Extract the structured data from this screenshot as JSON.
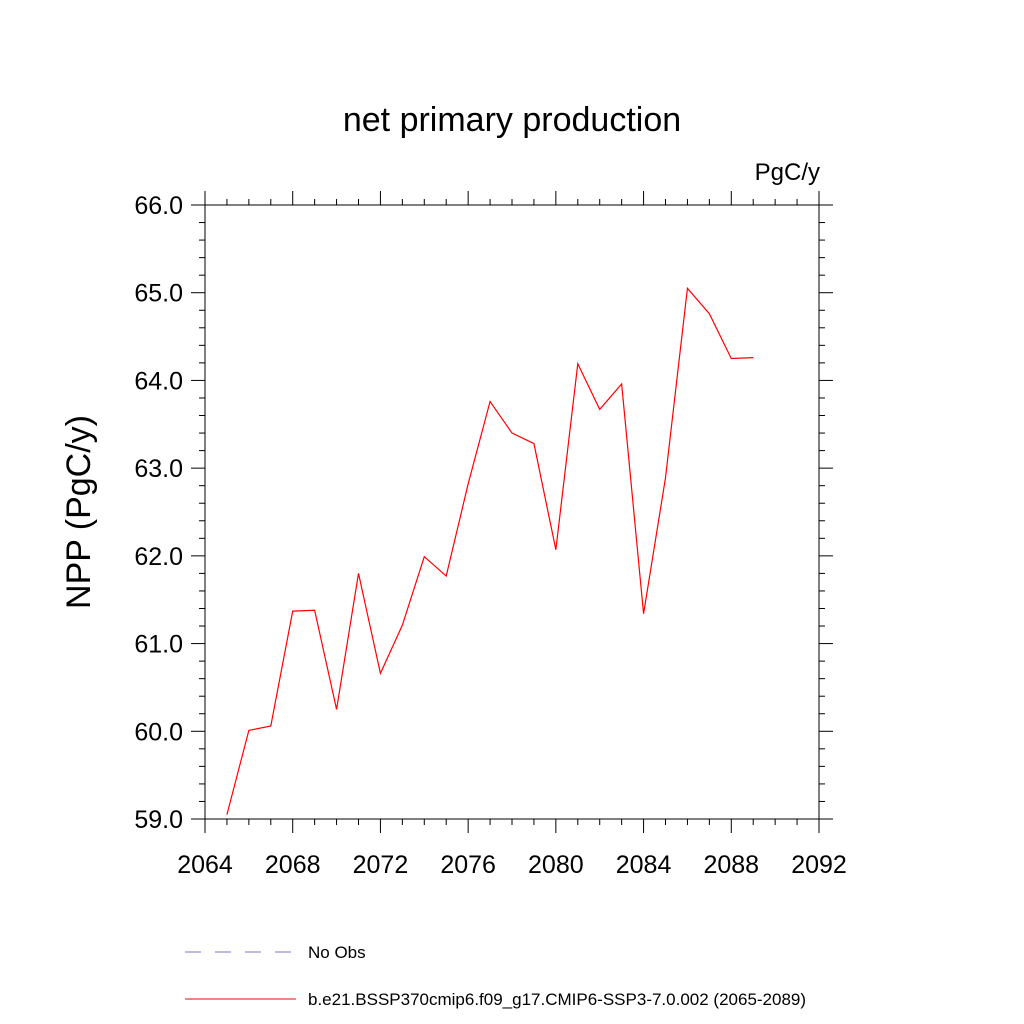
{
  "chart_data": {
    "type": "line",
    "title": "net primary production",
    "units": "PgC/y",
    "xlabel": "",
    "ylabel": "NPP  (PgC/y)",
    "xlim": [
      2064,
      2092
    ],
    "ylim": [
      59.0,
      66.0
    ],
    "x_ticks": [
      "2064",
      "2068",
      "2072",
      "2076",
      "2080",
      "2084",
      "2088",
      "2092"
    ],
    "y_ticks": [
      "59.0",
      "60.0",
      "61.0",
      "62.0",
      "63.0",
      "64.0",
      "65.0",
      "66.0"
    ],
    "grid": false,
    "legend_position": "bottom",
    "series": [
      {
        "name": "b.e21.BSSP370cmip6.f09_g17.CMIP6-SSP3-7.0.002 (2065-2089)",
        "color": "#ff0000",
        "style": "solid",
        "x": [
          2065,
          2066,
          2067,
          2068,
          2069,
          2070,
          2071,
          2072,
          2073,
          2074,
          2075,
          2076,
          2077,
          2078,
          2079,
          2080,
          2081,
          2082,
          2083,
          2084,
          2085,
          2086,
          2087,
          2088,
          2089
        ],
        "values": [
          59.05,
          60.01,
          60.06,
          61.37,
          61.38,
          60.25,
          61.8,
          60.66,
          61.21,
          61.99,
          61.77,
          62.82,
          63.76,
          63.4,
          63.28,
          62.07,
          64.19,
          63.67,
          63.96,
          61.34,
          62.89,
          65.05,
          64.76,
          64.25,
          64.26
        ]
      }
    ],
    "legend": [
      {
        "label": "No Obs",
        "color": "#7777cc",
        "style": "dashed"
      },
      {
        "label": "b.e21.BSSP370cmip6.f09_g17.CMIP6-SSP3-7.0.002 (2065-2089)",
        "color": "#ff0000",
        "style": "solid"
      }
    ]
  }
}
